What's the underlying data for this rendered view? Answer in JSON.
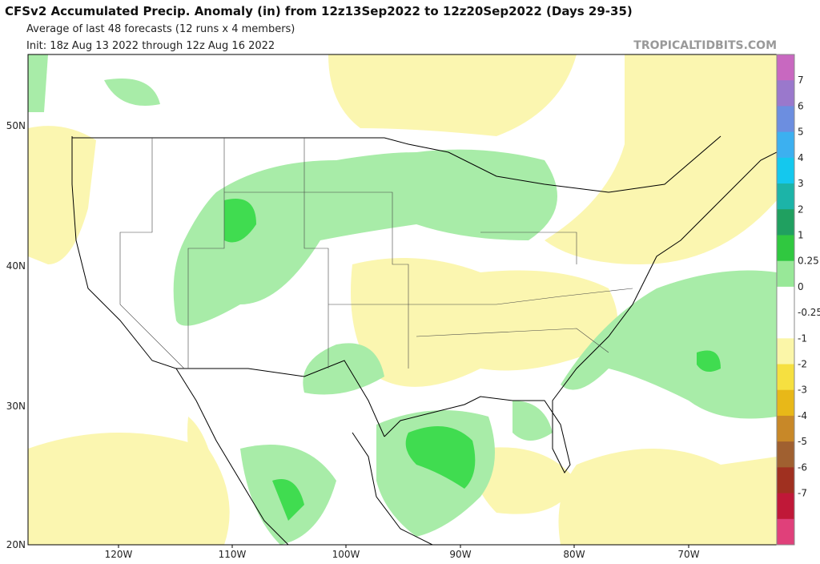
{
  "header": {
    "title": "CFSv2 Accumulated Precip. Anomaly (in) from 12z13Sep2022 to 12z20Sep2022 (Days 29-35)",
    "subtitle": "Average of last 48 forecasts (12 runs x 4 members)",
    "init": "Init: 18z Aug 13 2022 through 12z Aug 16 2022",
    "watermark": "TROPICALTIDBITS.COM"
  },
  "map": {
    "lat_labels": [
      "50N",
      "40N",
      "30N",
      "20N"
    ],
    "lon_labels": [
      "120W",
      "110W",
      "100W",
      "90W",
      "80W",
      "70W"
    ]
  },
  "colorbar": {
    "labels": [
      "7",
      "6",
      "5",
      "4",
      "3",
      "2",
      "1",
      "0.25",
      "0",
      "-0.25",
      "-1",
      "-2",
      "-3",
      "-4",
      "-5",
      "-6",
      "-7"
    ],
    "colors": [
      "#c868c0",
      "#9a78cc",
      "#6c8ee0",
      "#3cb0f0",
      "#14c8ee",
      "#1cb4a8",
      "#20a060",
      "#30c840",
      "#98e898",
      "#ffffff",
      "#ffffff",
      "#fbf6a8",
      "#f6e040",
      "#e8b818",
      "#c88828",
      "#a06030",
      "#a03020",
      "#c01838",
      "#e0407a"
    ]
  }
}
